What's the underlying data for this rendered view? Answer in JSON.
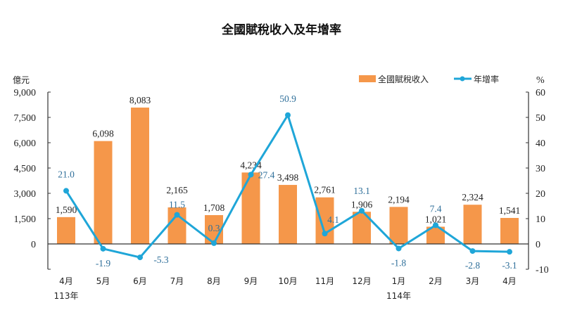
{
  "chart_data": {
    "type": "bar+line",
    "title": "全國賦稅收入及年增率",
    "left_unit": "億元",
    "right_unit": "%",
    "categories": [
      "4月",
      "5月",
      "6月",
      "7月",
      "8月",
      "9月",
      "10月",
      "11月",
      "12月",
      "1月",
      "2月",
      "3月",
      "4月"
    ],
    "year_labels": [
      {
        "index": 0,
        "label": "113年"
      },
      {
        "index": 9,
        "label": "114年"
      }
    ],
    "series": [
      {
        "name": "全國賦稅收入",
        "type": "bar",
        "axis": "left",
        "color": "#f5974a",
        "values": [
          1590,
          6098,
          8083,
          2165,
          1708,
          4234,
          3498,
          2761,
          1906,
          2194,
          1021,
          2324,
          1541
        ],
        "labels": [
          "1,590",
          "6,098",
          "8,083",
          "2,165",
          "1,708",
          "4,234",
          "3,498",
          "2,761",
          "1,906",
          "2,194",
          "1,021",
          "2,324",
          "1,541"
        ]
      },
      {
        "name": "年增率",
        "type": "line",
        "axis": "right",
        "color": "#1fa6d8",
        "values": [
          21.0,
          -1.9,
          -5.3,
          11.5,
          0.3,
          27.4,
          50.9,
          4.1,
          13.1,
          -1.8,
          7.4,
          -2.8,
          -3.1
        ],
        "labels": [
          "21.0",
          "-1.9",
          "-5.3",
          "11.5",
          "0.3",
          "27.4",
          "50.9",
          "4.1",
          "13.1",
          "-1.8",
          "7.4",
          "-2.8",
          "-3.1"
        ]
      }
    ],
    "left_axis": {
      "range": [
        -1500,
        9000
      ],
      "ticks": [
        0,
        1500,
        3000,
        4500,
        6000,
        7500,
        9000
      ],
      "tick_labels": [
        "0",
        "1,500",
        "3,000",
        "4,500",
        "6,000",
        "7,500",
        "9,000"
      ]
    },
    "right_axis": {
      "range": [
        -10,
        60
      ],
      "ticks": [
        -10,
        0,
        10,
        20,
        30,
        40,
        50,
        60
      ],
      "tick_labels": [
        "-10",
        "0",
        "10",
        "20",
        "30",
        "40",
        "50",
        "60"
      ]
    },
    "legend_placement": "top-right",
    "grid": false
  }
}
